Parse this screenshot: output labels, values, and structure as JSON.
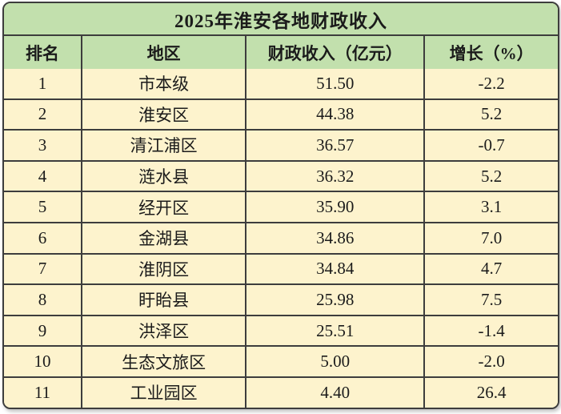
{
  "chart_data": {
    "type": "table",
    "title": "2025年淮安各地财政收入",
    "columns": [
      "排名",
      "地区",
      "财政收入（亿元）",
      "增长（%）"
    ],
    "rows": [
      {
        "rank": "1",
        "region": "市本级",
        "revenue": "51.50",
        "growth": "-2.2"
      },
      {
        "rank": "2",
        "region": "淮安区",
        "revenue": "44.38",
        "growth": "5.2"
      },
      {
        "rank": "3",
        "region": "清江浦区",
        "revenue": "36.57",
        "growth": "-0.7"
      },
      {
        "rank": "4",
        "region": "涟水县",
        "revenue": "36.32",
        "growth": "5.2"
      },
      {
        "rank": "5",
        "region": "经开区",
        "revenue": "35.90",
        "growth": "3.1"
      },
      {
        "rank": "6",
        "region": "金湖县",
        "revenue": "34.86",
        "growth": "7.0"
      },
      {
        "rank": "7",
        "region": "淮阴区",
        "revenue": "34.84",
        "growth": "4.7"
      },
      {
        "rank": "8",
        "region": "盱眙县",
        "revenue": "25.98",
        "growth": "7.5"
      },
      {
        "rank": "9",
        "region": "洪泽区",
        "revenue": "25.51",
        "growth": "-1.4"
      },
      {
        "rank": "10",
        "region": "生态文旅区",
        "revenue": "5.00",
        "growth": "-2.0"
      },
      {
        "rank": "11",
        "region": "工业园区",
        "revenue": "4.40",
        "growth": "26.4"
      }
    ]
  },
  "colors": {
    "header_green": "#c2e0ad",
    "row_cream": "#fdf3cd",
    "grid_line": "#3d3d3d",
    "text": "#1b1b1b",
    "page_background": "#ffffff"
  }
}
